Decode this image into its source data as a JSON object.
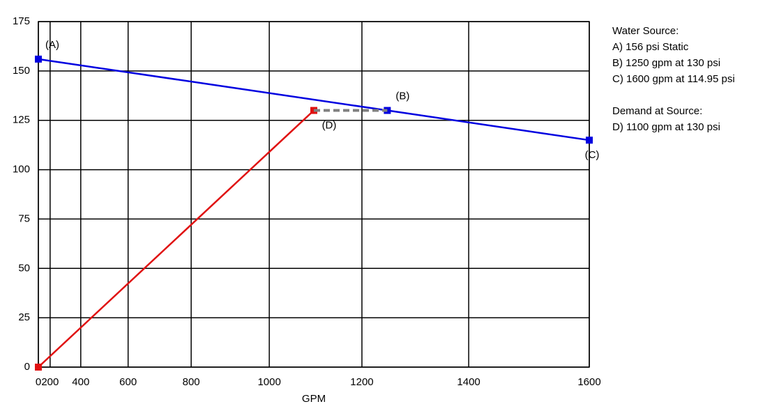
{
  "chart_data": {
    "type": "line",
    "x_label": "GPM",
    "x_scale_exponent": 1.85,
    "xlim": [
      0,
      1600
    ],
    "xticks": [
      0,
      200,
      400,
      600,
      800,
      1000,
      1200,
      1400,
      1600
    ],
    "ylim": [
      0,
      175
    ],
    "yticks": [
      0,
      25,
      50,
      75,
      100,
      125,
      150,
      175
    ],
    "grid": true,
    "series": [
      {
        "color": "#0000e0",
        "x": [
          0,
          1250,
          1600
        ],
        "values": [
          156,
          130,
          114.95
        ],
        "labels": [
          "(A)",
          "(B)",
          "(C)"
        ]
      },
      {
        "color": "#e01010",
        "x": [
          0,
          1100
        ],
        "values": [
          0,
          130
        ],
        "labels": [
          null,
          "(D)"
        ]
      },
      {
        "color": "#808080",
        "dashed": true,
        "x": [
          1100,
          1250
        ],
        "values": [
          130,
          130
        ]
      }
    ],
    "notes": [
      {
        "heading": "Water Source:",
        "lines": [
          "A) 156 psi Static",
          "B) 1250 gpm at 130 psi",
          "C) 1600 gpm at 114.95 psi"
        ]
      },
      {
        "heading": "Demand at Source:",
        "lines": [
          "D) 1100 gpm at 130 psi"
        ]
      }
    ]
  }
}
